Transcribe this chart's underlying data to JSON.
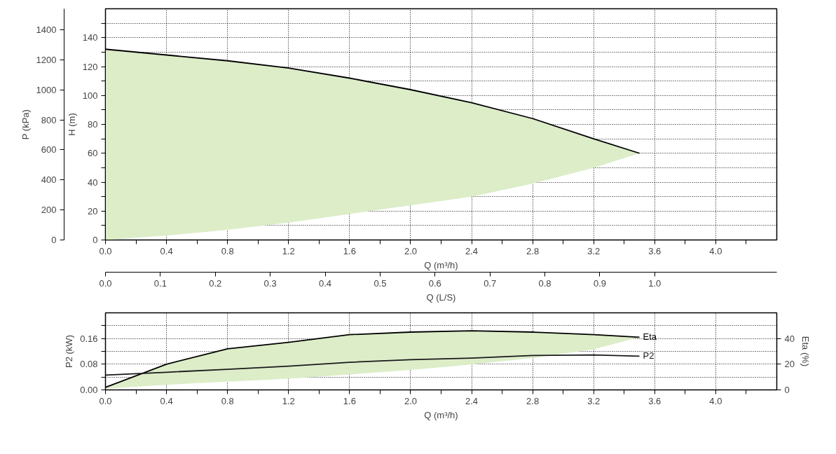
{
  "chart_data": [
    {
      "type": "line",
      "xlabel": "Q (m³/h)",
      "x2label": "Q (L/S)",
      "ylabel": "H (m)",
      "y2label": "P (kPa)",
      "xlim": [
        0,
        4.4
      ],
      "x2lim": [
        0,
        1.2222
      ],
      "ylim": [
        0,
        160
      ],
      "y2lim": [
        0,
        1540
      ],
      "xticks": [
        {
          "value": 0,
          "label": "0.0"
        },
        {
          "value": 0.2,
          "label": null
        },
        0.4,
        {
          "value": 0.6,
          "label": null
        },
        0.8,
        {
          "value": 1.0,
          "label": null
        },
        1.2,
        {
          "value": 1.4,
          "label": null
        },
        1.6,
        {
          "value": 1.8,
          "label": null
        },
        {
          "value": 2.0,
          "label": "2.0"
        },
        {
          "value": 2.2,
          "label": null
        },
        2.4,
        {
          "value": 2.6,
          "label": null
        },
        2.8,
        {
          "value": 3.0,
          "label": null
        },
        3.2,
        {
          "value": 3.4,
          "label": null
        },
        3.6,
        {
          "value": 3.8,
          "label": null
        },
        {
          "value": 4.0,
          "label": "4.0"
        },
        {
          "value": 4.2,
          "label": null
        }
      ],
      "x2ticks": [
        {
          "value": 0,
          "label": "0.0"
        },
        0.1,
        0.2,
        0.3,
        0.4,
        0.5,
        0.6,
        0.7,
        0.8,
        0.9,
        {
          "value": 1.0,
          "label": "1.0"
        }
      ],
      "yticks": [
        0,
        {
          "value": 10,
          "label": null
        },
        20,
        {
          "value": 30,
          "label": null
        },
        40,
        {
          "value": 50,
          "label": null
        },
        60,
        {
          "value": 70,
          "label": null
        },
        80,
        {
          "value": 90,
          "label": null
        },
        100,
        {
          "value": 110,
          "label": null
        },
        120,
        {
          "value": 130,
          "label": null
        },
        140,
        {
          "value": 150,
          "label": null
        }
      ],
      "y2ticks": [
        0,
        200,
        400,
        600,
        800,
        1000,
        1200,
        1400
      ],
      "grid": true,
      "series": [
        {
          "color": "#000000",
          "x": [
            0,
            0.4,
            0.8,
            1.2,
            1.6,
            2.0,
            2.4,
            2.8,
            3.2,
            3.5
          ],
          "values": [
            132,
            128,
            124,
            119,
            112,
            104,
            95,
            84,
            70,
            60
          ],
          "lower": [
            0,
            3,
            7,
            12,
            18,
            24,
            30,
            39,
            50,
            60
          ],
          "upper": [
            132,
            128,
            124,
            119,
            112,
            104,
            95,
            84,
            70,
            60
          ]
        }
      ]
    },
    {
      "type": "line",
      "xlabel": "Q (m³/h)",
      "ylabel": "P2 (kW)",
      "y2label": "Eta (%)",
      "xlim": [
        0,
        4.4
      ],
      "ylim": [
        0,
        0.24
      ],
      "y2lim": [
        0,
        60
      ],
      "xticks": [
        {
          "value": 0,
          "label": "0.0"
        },
        {
          "value": 0.2,
          "label": null
        },
        0.4,
        {
          "value": 0.6,
          "label": null
        },
        0.8,
        {
          "value": 1.0,
          "label": null
        },
        1.2,
        {
          "value": 1.4,
          "label": null
        },
        1.6,
        {
          "value": 1.8,
          "label": null
        },
        {
          "value": 2.0,
          "label": "2.0"
        },
        {
          "value": 2.2,
          "label": null
        },
        2.4,
        {
          "value": 2.6,
          "label": null
        },
        2.8,
        {
          "value": 3.0,
          "label": null
        },
        3.2,
        {
          "value": 3.4,
          "label": null
        },
        3.6,
        {
          "value": 3.8,
          "label": null
        },
        {
          "value": 4.0,
          "label": "4.0"
        },
        {
          "value": 4.2,
          "label": null
        }
      ],
      "yticks": [
        {
          "value": 0,
          "label": "0.00"
        },
        {
          "value": 0.04,
          "label": null
        },
        {
          "value": 0.08,
          "label": "0.08"
        },
        {
          "value": 0.12,
          "label": null
        },
        0.16,
        {
          "value": 0.2,
          "label": null
        }
      ],
      "y2ticks": [
        0,
        20,
        40
      ],
      "grid": true,
      "series": [
        {
          "axis": "y2",
          "name": "Eta",
          "color": "#000000",
          "x": [
            0,
            0.4,
            0.8,
            1.2,
            1.6,
            2.0,
            2.4,
            2.8,
            3.2,
            3.5
          ],
          "values": [
            2,
            20,
            32,
            37,
            43,
            45,
            46,
            45,
            43,
            41
          ],
          "lower": [
            1,
            4,
            6.4,
            8.7,
            12,
            15.6,
            19.8,
            24.8,
            31.7,
            41
          ],
          "upper": [
            2,
            20,
            32,
            37,
            43,
            45,
            46,
            45,
            43,
            41
          ]
        },
        {
          "name": "P2",
          "color": "#1a1a1a",
          "x": [
            0,
            0.4,
            0.8,
            1.2,
            1.6,
            2.0,
            2.4,
            2.8,
            3.2,
            3.5
          ],
          "values": [
            0.046,
            0.055,
            0.064,
            0.074,
            0.086,
            0.094,
            0.099,
            0.107,
            0.109,
            0.105
          ]
        }
      ]
    }
  ]
}
